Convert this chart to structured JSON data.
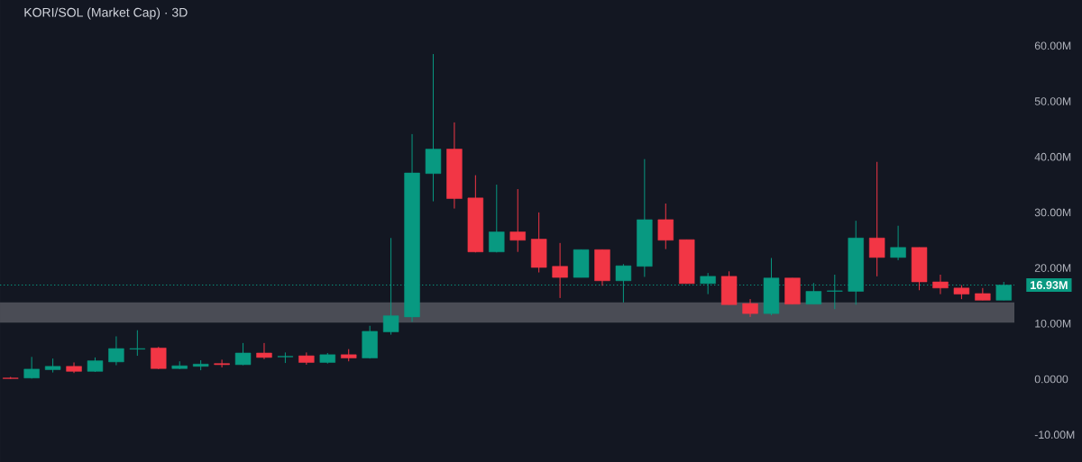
{
  "chart_data": {
    "type": "candlestick",
    "title": "KORI/SOL (Market Cap) · 3D",
    "categories": [
      null,
      null,
      null,
      null,
      null,
      null,
      null,
      null,
      null,
      null,
      null,
      null,
      null,
      null,
      null,
      null,
      null,
      null,
      null,
      null,
      null,
      null,
      null,
      null,
      null,
      null,
      null,
      null,
      null,
      null,
      null,
      null,
      null,
      null,
      null,
      null,
      null,
      null,
      null,
      null,
      null,
      null,
      null,
      null,
      null,
      null,
      null,
      null
    ],
    "ohlc": [
      [
        0.2,
        0.4,
        0.05,
        0.1
      ],
      [
        0.2,
        4.0,
        0.1,
        1.8
      ],
      [
        1.7,
        3.7,
        1.2,
        2.3
      ],
      [
        2.3,
        3.0,
        1.1,
        1.4
      ],
      [
        1.4,
        3.9,
        1.3,
        3.3
      ],
      [
        3.1,
        7.7,
        2.5,
        5.5
      ],
      [
        5.4,
        8.8,
        4.2,
        5.5
      ],
      [
        5.6,
        5.8,
        1.8,
        1.9
      ],
      [
        1.9,
        3.2,
        1.8,
        2.4
      ],
      [
        2.3,
        3.4,
        1.6,
        2.7
      ],
      [
        2.8,
        3.5,
        2.1,
        2.6
      ],
      [
        2.6,
        6.5,
        2.5,
        4.7
      ],
      [
        4.7,
        6.5,
        3.6,
        3.9
      ],
      [
        4.0,
        4.8,
        2.9,
        4.1
      ],
      [
        4.2,
        4.8,
        2.6,
        3.0
      ],
      [
        3.0,
        4.7,
        2.8,
        4.4
      ],
      [
        4.4,
        5.4,
        3.2,
        3.8
      ],
      [
        3.8,
        9.6,
        3.7,
        8.6
      ],
      [
        8.5,
        25.4,
        8.0,
        11.4
      ],
      [
        11.2,
        44.1,
        10.3,
        37.1
      ],
      [
        37.0,
        58.5,
        32.0,
        41.4
      ],
      [
        41.4,
        46.2,
        30.7,
        32.5
      ],
      [
        32.6,
        36.7,
        22.8,
        22.9
      ],
      [
        22.9,
        35.0,
        22.8,
        26.5
      ],
      [
        26.5,
        34.2,
        22.9,
        25.0
      ],
      [
        25.2,
        30.0,
        19.2,
        20.1
      ],
      [
        20.3,
        24.5,
        14.6,
        18.3
      ],
      [
        18.3,
        23.3,
        18.3,
        23.3
      ],
      [
        23.3,
        23.3,
        16.8,
        17.7
      ],
      [
        17.7,
        20.7,
        13.8,
        20.4
      ],
      [
        20.3,
        39.6,
        18.4,
        28.7
      ],
      [
        28.7,
        31.6,
        23.4,
        25.0
      ],
      [
        25.1,
        25.1,
        17.2,
        17.2
      ],
      [
        17.2,
        19.1,
        15.3,
        18.5
      ],
      [
        18.5,
        19.4,
        13.4,
        13.4
      ],
      [
        13.6,
        14.4,
        11.2,
        11.8
      ],
      [
        11.8,
        21.8,
        11.5,
        18.2
      ],
      [
        18.2,
        18.2,
        13.5,
        13.5
      ],
      [
        13.5,
        17.3,
        13.5,
        15.8
      ],
      [
        15.8,
        18.8,
        12.6,
        15.9
      ],
      [
        15.8,
        28.5,
        13.4,
        25.4
      ],
      [
        25.4,
        39.1,
        18.5,
        21.9
      ],
      [
        21.9,
        27.6,
        21.4,
        23.7
      ],
      [
        23.7,
        23.7,
        16.0,
        17.5
      ],
      [
        17.5,
        18.8,
        15.3,
        16.4
      ],
      [
        16.4,
        16.9,
        14.4,
        15.3
      ],
      [
        15.4,
        16.4,
        14.2,
        14.2
      ],
      [
        14.2,
        17.5,
        14.2,
        16.93
      ]
    ],
    "colors": [
      "#f23645",
      "#089981",
      "#089981",
      "#f23645",
      "#089981",
      "#089981",
      "#089981",
      "#f23645",
      "#089981",
      "#089981",
      "#f23645",
      "#089981",
      "#f23645",
      "#089981",
      "#f23645",
      "#089981",
      "#f23645",
      "#089981",
      "#089981",
      "#089981",
      "#089981",
      "#f23645",
      "#f23645",
      "#089981",
      "#f23645",
      "#f23645",
      "#f23645",
      "#089981",
      "#f23645",
      "#089981",
      "#089981",
      "#f23645",
      "#f23645",
      "#089981",
      "#f23645",
      "#f23645",
      "#089981",
      "#f23645",
      "#089981",
      "#089981",
      "#089981",
      "#f23645",
      "#089981",
      "#f23645",
      "#f23645",
      "#f23645",
      "#f23645",
      "#089981"
    ],
    "ylim": [
      -10,
      60
    ],
    "yticks": [
      {
        "value": -10,
        "label": "-10.00M"
      },
      {
        "value": 0,
        "label": "0.0000"
      },
      {
        "value": 10,
        "label": "10.00M"
      },
      {
        "value": 20,
        "label": "20.00M"
      },
      {
        "value": 30,
        "label": "30.00M"
      },
      {
        "value": 40,
        "label": "40.00M"
      },
      {
        "value": 50,
        "label": "50.00M"
      },
      {
        "value": 60,
        "label": "60.00M"
      }
    ],
    "tick_labels": "y",
    "ref_lines": [
      {
        "axis": "y",
        "value": 16.93,
        "label": "16.93M",
        "color": "#089981",
        "line_style": "dotted"
      }
    ],
    "bands": [
      {
        "axis": "y",
        "from": 10.15,
        "to": 13.8,
        "color": "#4a4c55"
      }
    ]
  }
}
